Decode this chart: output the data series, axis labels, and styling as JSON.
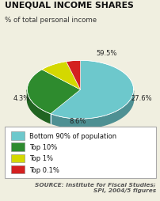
{
  "title": "UNEQUAL INCOME SHARES",
  "subtitle": "% of total personal income",
  "slices": [
    59.5,
    27.6,
    8.6,
    4.3
  ],
  "pct_labels": [
    "59.5%",
    "27.6%",
    "8.6%",
    "4.3%"
  ],
  "colors": [
    "#6dc8cc",
    "#2e8b2e",
    "#d4d800",
    "#d42020"
  ],
  "legend_labels": [
    "Bottom 90% of population",
    "Top 10%",
    "Top 1%",
    "Top 0.1%"
  ],
  "source": "SOURCE: Institute for Fiscal Studies;\nSPI, 2004/5 figures",
  "startangle": 90,
  "background_color": "#f0efe0"
}
